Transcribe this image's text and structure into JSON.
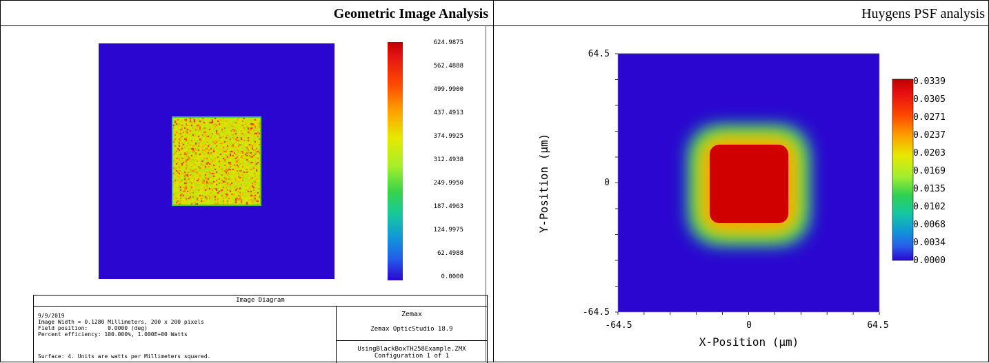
{
  "left_panel": {
    "title": "Geometric Image Analysis",
    "colorbar_ticks": [
      "624.9875",
      "562.4888",
      "499.9900",
      "437.4913",
      "374.9925",
      "312.4938",
      "249.9950",
      "187.4963",
      "124.9975",
      "62.4988",
      "0.0000"
    ],
    "info": {
      "title": "Image Diagram",
      "date": "9/9/2019",
      "image_width": "Image Width = 0.1280 Millimeters, 200 x 200 pixels",
      "field_position": "Field position:      0.0000 (deg)",
      "efficiency": "Percent efficiency: 100.000%, 1.000E+00 Watts",
      "surface": "Surface: 4. Units are watts per Millimeters squared.",
      "brand": "Zemax",
      "version": "Zemax OpticStudio 18.9",
      "filename": "UsingBlackBoxTH258Example.ZMX",
      "configuration": "Configuration 1 of 1"
    }
  },
  "right_panel": {
    "title": "Huygens PSF analysis"
  },
  "chart_data": {
    "type": "heatmap",
    "xlabel": "X-Position (μm)",
    "ylabel": "Y-Position (μm)",
    "xlim": [
      -64.5,
      64.5
    ],
    "ylim": [
      -64.5,
      64.5
    ],
    "x_ticks": [
      "-64.5",
      "0",
      "64.5"
    ],
    "y_ticks": [
      "64.5",
      "0",
      "-64.5"
    ],
    "colorbar_ticks": [
      "0.0339",
      "0.0305",
      "0.0271",
      "0.0237",
      "0.0203",
      "0.0169",
      "0.0135",
      "0.0102",
      "0.0068",
      "0.0034",
      "0.0000"
    ],
    "colorbar_range": [
      0.0,
      0.0339
    ]
  },
  "colors": {
    "background_blue": "#2a06d0",
    "peak_red": "#c00000"
  }
}
